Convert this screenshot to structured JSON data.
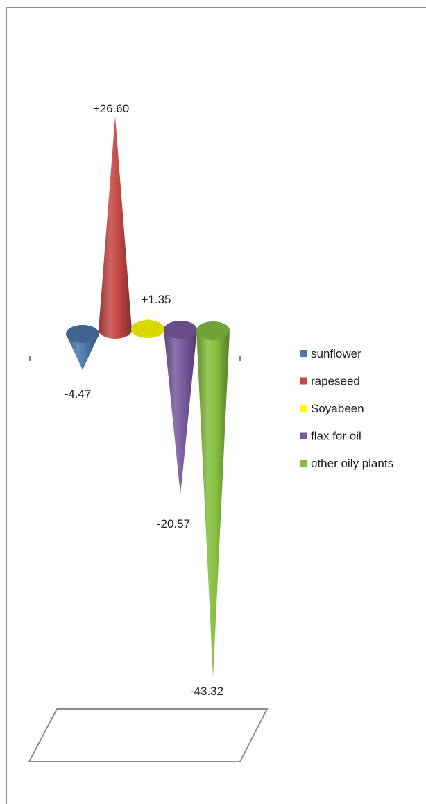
{
  "chart_data": {
    "type": "bar",
    "style": "3d-cone",
    "categories": [
      "sunflower",
      "rapeseed",
      "Soyabeen",
      "flax for oil",
      "other oily plants"
    ],
    "values": [
      -4.47,
      26.6,
      1.35,
      -20.57,
      -43.32
    ],
    "data_labels": [
      "-4.47",
      "+26.60",
      "+1.35",
      "-20.57",
      "-43.32"
    ],
    "colors": [
      "#4a76ab",
      "#c44845",
      "#ffff00",
      "#7a5a9e",
      "#85be3e"
    ],
    "legend": {
      "position": "right",
      "entries": [
        "sunflower",
        "rapeseed",
        "Soyabeen",
        "flax for oil",
        "other oily plants"
      ]
    },
    "grid": false
  }
}
